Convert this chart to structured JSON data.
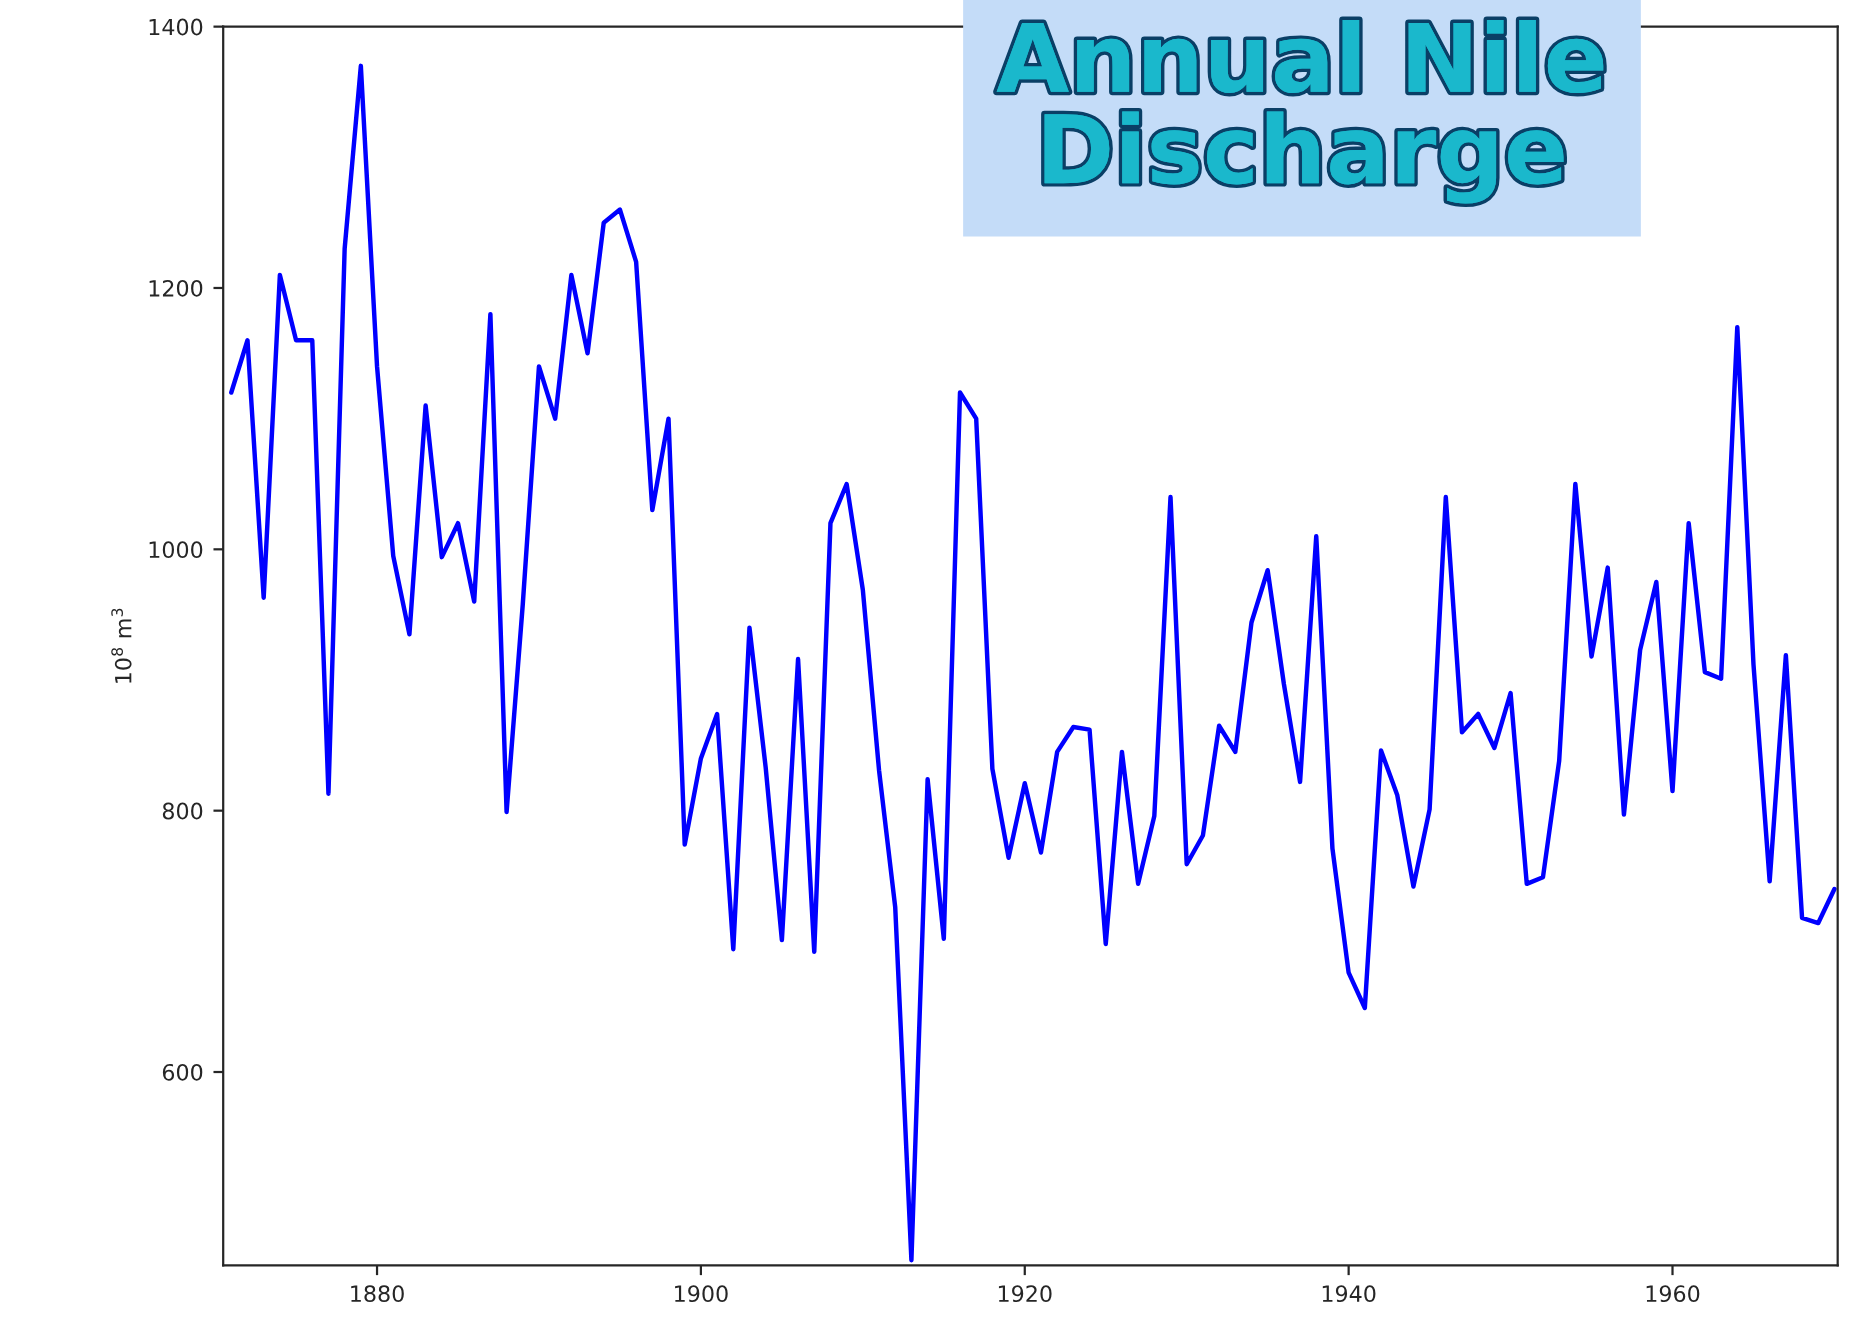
{
  "chart_data": {
    "type": "line",
    "title": "Annual Nile\nDischarge",
    "ylabel": "10$^{8}$ m$^{3}$",
    "x": [
      1871,
      1872,
      1873,
      1874,
      1875,
      1876,
      1877,
      1878,
      1879,
      1880,
      1881,
      1882,
      1883,
      1884,
      1885,
      1886,
      1887,
      1888,
      1889,
      1890,
      1891,
      1892,
      1893,
      1894,
      1895,
      1896,
      1897,
      1898,
      1899,
      1900,
      1901,
      1902,
      1903,
      1904,
      1905,
      1906,
      1907,
      1908,
      1909,
      1910,
      1911,
      1912,
      1913,
      1914,
      1915,
      1916,
      1917,
      1918,
      1919,
      1920,
      1921,
      1922,
      1923,
      1924,
      1925,
      1926,
      1927,
      1928,
      1929,
      1930,
      1931,
      1932,
      1933,
      1934,
      1935,
      1936,
      1937,
      1938,
      1939,
      1940,
      1941,
      1942,
      1943,
      1944,
      1945,
      1946,
      1947,
      1948,
      1949,
      1950,
      1951,
      1952,
      1953,
      1954,
      1955,
      1956,
      1957,
      1958,
      1959,
      1960,
      1961,
      1962,
      1963,
      1964,
      1965,
      1966,
      1967,
      1968,
      1969,
      1970
    ],
    "series": [
      {
        "color": "#0000ff",
        "values": [
          1120,
          1160,
          963,
          1210,
          1160,
          1160,
          813,
          1230,
          1370,
          1140,
          995,
          935,
          1110,
          994,
          1020,
          960,
          1180,
          799,
          958,
          1140,
          1100,
          1210,
          1150,
          1250,
          1260,
          1220,
          1030,
          1100,
          774,
          840,
          874,
          694,
          940,
          833,
          701,
          916,
          692,
          1020,
          1050,
          969,
          831,
          726,
          456,
          824,
          702,
          1120,
          1100,
          832,
          764,
          821,
          768,
          845,
          864,
          862,
          698,
          845,
          744,
          796,
          1040,
          759,
          781,
          865,
          845,
          944,
          984,
          897,
          822,
          1010,
          771,
          676,
          649,
          846,
          812,
          742,
          801,
          1040,
          860,
          874,
          848,
          890,
          744,
          749,
          838,
          1050,
          918,
          986,
          797,
          923,
          975,
          815,
          1020,
          906,
          901,
          1170,
          912,
          746,
          919,
          718,
          714,
          740
        ]
      }
    ],
    "xlim": [
      1870.5,
      1970.2
    ],
    "xticks": [
      1880,
      1900,
      1920,
      1940,
      1960
    ],
    "ylim": [
      452,
      1400
    ],
    "yticks": [
      600,
      800,
      1000,
      1200,
      1400
    ],
    "grid": false,
    "legend": false,
    "line_style": "solid",
    "marker": "none"
  }
}
